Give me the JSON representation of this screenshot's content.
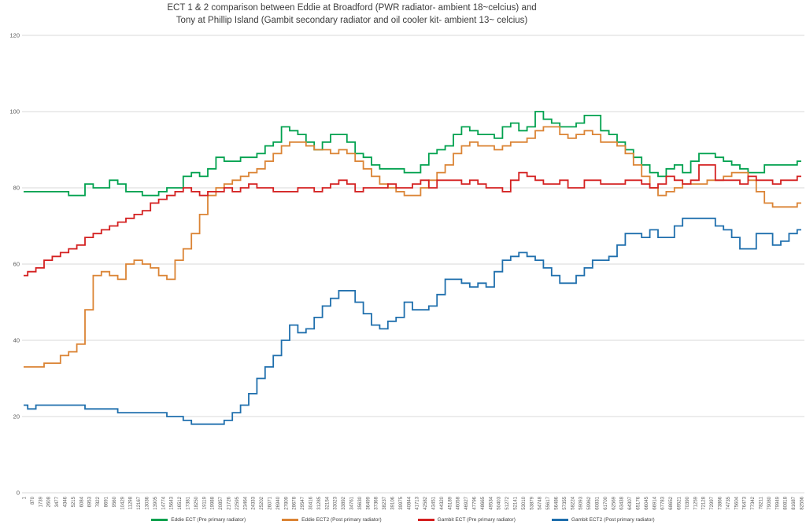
{
  "title": {
    "line1": "ECT 1 & 2 comparison between Eddie at Broadford (PWR radiator- ambient 18~celcius) and",
    "line2": "Tony at Phillip Island (Gambit secondary radiator and oil cooler kit- ambient 13~ celcius)"
  },
  "colors": {
    "grid": "#d9d9d9",
    "axis_text": "#595959",
    "title_text": "#3c3c3c",
    "background": "#ffffff"
  },
  "chart_data": {
    "type": "line",
    "title": "ECT 1 & 2 comparison between Eddie at Broadford (PWR radiator- ambient 18~celcius) and Tony at Phillip Island (Gambit secondary radiator and oil cooler kit- ambient 13~ celcius)",
    "xlabel": "",
    "ylabel": "",
    "ylim": [
      0,
      120
    ],
    "y_ticks": [
      0,
      20,
      40,
      60,
      80,
      100,
      120
    ],
    "grid": "horizontal",
    "legend_position": "bottom",
    "line_style": "step",
    "x_tick_labels": [
      "1",
      "870",
      "1739",
      "2608",
      "3477",
      "4346",
      "5215",
      "6084",
      "6953",
      "7822",
      "8691",
      "9560",
      "10429",
      "11298",
      "12167",
      "13036",
      "13905",
      "14774",
      "15643",
      "16512",
      "17381",
      "18250",
      "19119",
      "19988",
      "20857",
      "21726",
      "22595",
      "23464",
      "24333",
      "25202",
      "26071",
      "26940",
      "27809",
      "28678",
      "29547",
      "30416",
      "31285",
      "32154",
      "33023",
      "33892",
      "34761",
      "35630",
      "36499",
      "37368",
      "38237",
      "39106",
      "39975",
      "40844",
      "41713",
      "42582",
      "43451",
      "44320",
      "45189",
      "46058",
      "46927",
      "47796",
      "48665",
      "49534",
      "50403",
      "51272",
      "52141",
      "53010",
      "53879",
      "54748",
      "55617",
      "56486",
      "57355",
      "58224",
      "59093",
      "59962",
      "60831",
      "61700",
      "62569",
      "63438",
      "64307",
      "65176",
      "66045",
      "66914",
      "67783",
      "68652",
      "69521",
      "70390",
      "71259",
      "72128",
      "72997",
      "73866",
      "74735",
      "75604",
      "76473",
      "77342",
      "78211",
      "79080",
      "79949",
      "80818",
      "81687",
      "82556"
    ],
    "series": [
      {
        "name": "Eddie ECT (Pre primary radiator)",
        "color": "#00a14e",
        "values": [
          79,
          79,
          79,
          79,
          79,
          79,
          78,
          78,
          81,
          80,
          80,
          82,
          81,
          79,
          79,
          78,
          78,
          79,
          80,
          80,
          83,
          84,
          83,
          85,
          88,
          87,
          87,
          88,
          88,
          89,
          91,
          92,
          96,
          95,
          94,
          92,
          90,
          92,
          94,
          94,
          92,
          89,
          88,
          86,
          85,
          85,
          85,
          84,
          84,
          86,
          89,
          90,
          91,
          94,
          96,
          95,
          94,
          94,
          93,
          96,
          97,
          95,
          96,
          100,
          98,
          97,
          96,
          96,
          97,
          99,
          99,
          95,
          94,
          92,
          90,
          88,
          86,
          84,
          83,
          85,
          86,
          84,
          87,
          89,
          89,
          88,
          87,
          86,
          85,
          84,
          84,
          86,
          86,
          86,
          86,
          87
        ]
      },
      {
        "name": "Eddie ECT2 (Post primary radiator)",
        "color": "#db8435",
        "values": [
          33,
          33,
          33,
          34,
          34,
          36,
          37,
          39,
          48,
          57,
          58,
          57,
          56,
          60,
          61,
          60,
          59,
          57,
          56,
          61,
          64,
          68,
          73,
          78,
          80,
          81,
          82,
          83,
          84,
          85,
          87,
          89,
          91,
          92,
          92,
          91,
          90,
          90,
          89,
          90,
          89,
          87,
          85,
          83,
          81,
          80,
          79,
          78,
          78,
          80,
          82,
          84,
          86,
          89,
          91,
          92,
          91,
          91,
          90,
          91,
          92,
          92,
          93,
          95,
          96,
          96,
          94,
          93,
          94,
          95,
          94,
          92,
          92,
          91,
          89,
          86,
          83,
          80,
          78,
          79,
          80,
          81,
          81,
          81,
          82,
          82,
          83,
          84,
          84,
          82,
          79,
          76,
          75,
          75,
          75,
          76
        ]
      },
      {
        "name": "Gambit ECT (Pre primary radiator)",
        "color": "#d42020",
        "values": [
          57,
          58,
          59,
          61,
          62,
          63,
          64,
          65,
          67,
          68,
          69,
          70,
          71,
          72,
          73,
          74,
          76,
          77,
          78,
          79,
          80,
          79,
          78,
          79,
          79,
          80,
          79,
          80,
          81,
          80,
          80,
          79,
          79,
          79,
          80,
          80,
          79,
          80,
          81,
          82,
          81,
          79,
          80,
          80,
          80,
          81,
          80,
          80,
          81,
          82,
          80,
          82,
          82,
          82,
          81,
          82,
          81,
          80,
          80,
          79,
          82,
          84,
          83,
          82,
          81,
          81,
          82,
          80,
          80,
          82,
          82,
          81,
          81,
          81,
          82,
          82,
          81,
          80,
          81,
          83,
          82,
          81,
          82,
          86,
          86,
          82,
          82,
          82,
          81,
          83,
          82,
          82,
          81,
          82,
          82,
          83
        ]
      },
      {
        "name": "Gambit ECT2 (Post primary radiator)",
        "color": "#1f6fad",
        "values": [
          23,
          22,
          23,
          23,
          23,
          23,
          23,
          23,
          22,
          22,
          22,
          22,
          21,
          21,
          21,
          21,
          21,
          21,
          20,
          20,
          19,
          18,
          18,
          18,
          18,
          19,
          21,
          23,
          26,
          30,
          33,
          36,
          40,
          44,
          42,
          43,
          46,
          49,
          51,
          53,
          53,
          50,
          47,
          44,
          43,
          45,
          46,
          50,
          48,
          48,
          49,
          52,
          56,
          56,
          55,
          54,
          55,
          54,
          58,
          61,
          62,
          63,
          62,
          61,
          59,
          57,
          55,
          55,
          57,
          59,
          61,
          61,
          62,
          65,
          68,
          68,
          67,
          69,
          67,
          67,
          70,
          72,
          72,
          72,
          72,
          70,
          69,
          67,
          64,
          64,
          68,
          68,
          65,
          66,
          68,
          69
        ]
      }
    ]
  }
}
